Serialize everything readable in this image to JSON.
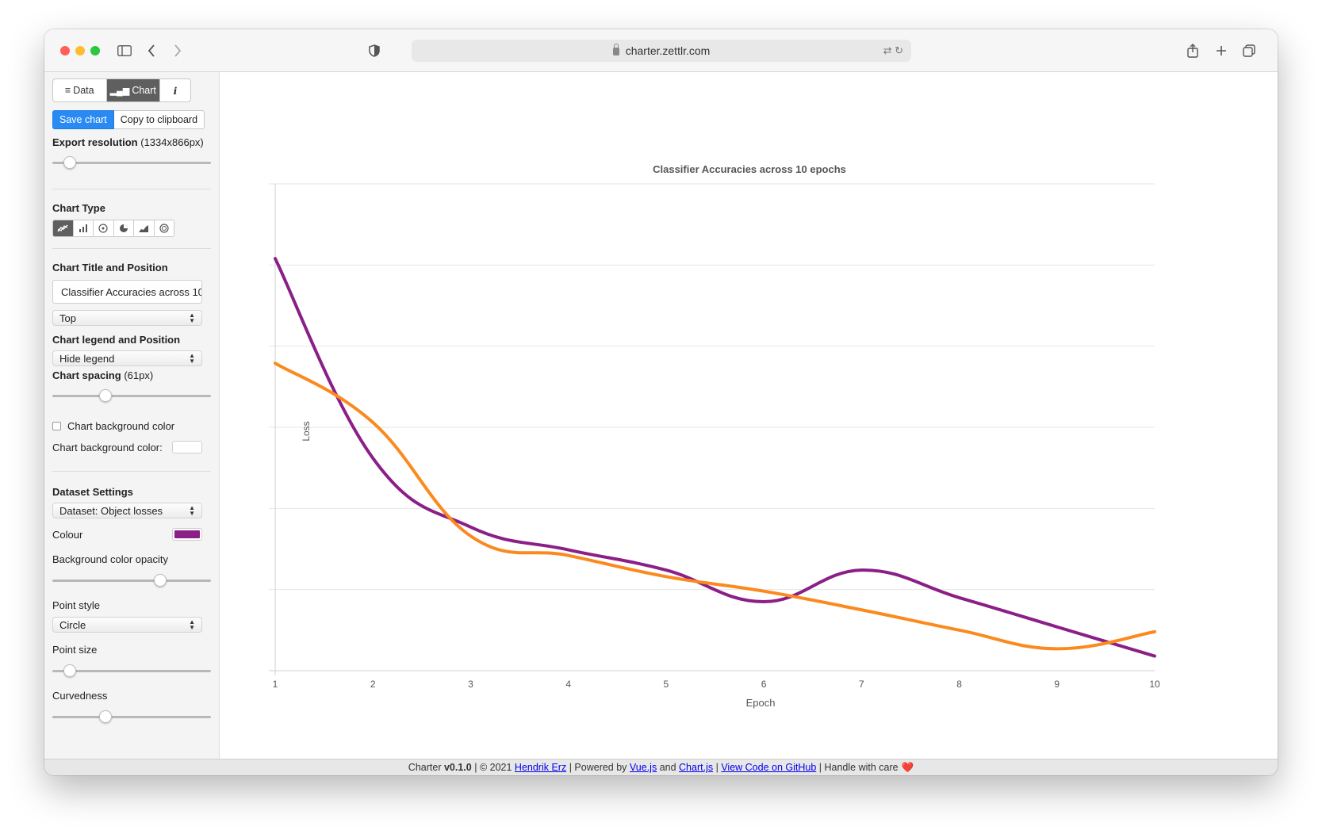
{
  "browser": {
    "url": "charter.zettlr.com",
    "traffic_lights": {
      "close": "#ff5f57",
      "minimize": "#febc2e",
      "maximize": "#28c840"
    }
  },
  "sidebar": {
    "tabs": [
      {
        "label": "Data",
        "icon": "database-icon"
      },
      {
        "label": "Chart",
        "icon": "bar-chart-icon",
        "active": true
      },
      {
        "label": "i",
        "icon": "info-icon"
      }
    ],
    "save_label": "Save chart",
    "copy_label": "Copy to clipboard",
    "export_label": "Export resolution",
    "export_value": "(1334x866px)",
    "export_slider_fraction": 0.08,
    "chart_type_label": "Chart Type",
    "chart_types": [
      "line",
      "bar",
      "radar",
      "pie",
      "area",
      "polar"
    ],
    "title_section_label": "Chart Title and Position",
    "title_value": "Classifier Accuracies across 10 epochs",
    "title_position": "Top",
    "legend_section_label": "Chart legend and Position",
    "legend_value": "Hide legend",
    "spacing_label": "Chart spacing",
    "spacing_value": "(61px)",
    "spacing_slider_fraction": 0.34,
    "bg_checkbox_label": "Chart background color",
    "bg_color_label": "Chart background color:",
    "dataset_section_label": "Dataset Settings",
    "dataset_value": "Dataset: Object losses",
    "colour_label": "Colour",
    "colour_value": "#8b1f88",
    "opacity_label": "Background color opacity",
    "opacity_slider_fraction": 0.74,
    "point_style_label": "Point style",
    "point_style_value": "Circle",
    "point_size_label": "Point size",
    "point_size_slider_fraction": 0.08,
    "curvedness_label": "Curvedness",
    "curvedness_slider_fraction": 0.34
  },
  "chart_data": {
    "type": "line",
    "title": "Classifier Accuracies across 10 epochs",
    "xlabel": "Epoch",
    "ylabel": "Loss",
    "x": [
      1,
      2,
      3,
      4,
      5,
      6,
      7,
      8,
      9,
      10
    ],
    "y_tick_labels_visible": false,
    "ylim": [
      0,
      6
    ],
    "grid": true,
    "legend": "hidden",
    "series": [
      {
        "color": "#8b1f88",
        "values": [
          5.08,
          2.62,
          1.77,
          1.49,
          1.24,
          0.85,
          1.24,
          0.9,
          0.54,
          0.18
        ]
      },
      {
        "color": "#fb8a1e",
        "values": [
          3.79,
          3.06,
          1.66,
          1.42,
          1.16,
          0.98,
          0.75,
          0.5,
          0.27,
          0.48
        ]
      }
    ]
  },
  "footer": {
    "app": "Charter",
    "version": "v0.1.0",
    "copyright": "| © 2021",
    "author": "Hendrik Erz",
    "powered": "| Powered by",
    "lib1": "Vue.js",
    "and": "and",
    "lib2": "Chart.js",
    "github": "View Code on GitHub",
    "tagline": "| Handle with care",
    "heart": "❤️"
  }
}
